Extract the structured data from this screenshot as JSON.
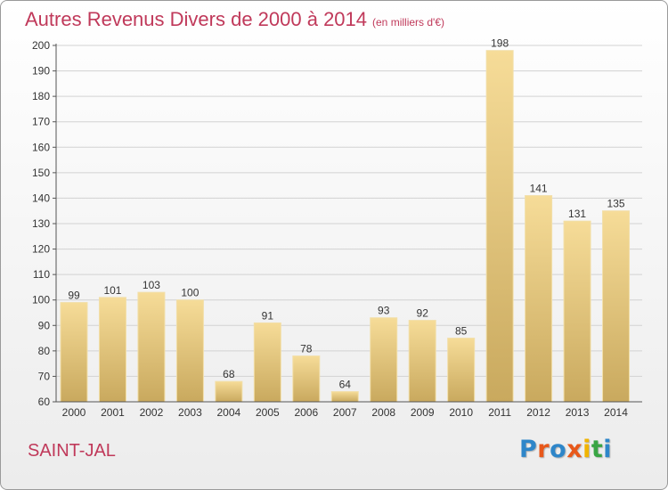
{
  "chart_data": {
    "type": "bar",
    "title": "Autres Revenus Divers de 2000 à 2014",
    "subtitle": "(en milliers d'€)",
    "categories": [
      "2000",
      "2001",
      "2002",
      "2003",
      "2004",
      "2005",
      "2006",
      "2007",
      "2008",
      "2009",
      "2010",
      "2011",
      "2012",
      "2013",
      "2014"
    ],
    "values": [
      99,
      101,
      103,
      100,
      68,
      91,
      78,
      64,
      93,
      92,
      85,
      198,
      141,
      131,
      135
    ],
    "ylim": [
      60,
      200
    ],
    "yticks": [
      60,
      70,
      80,
      90,
      100,
      110,
      120,
      130,
      140,
      150,
      160,
      170,
      180,
      190,
      200
    ],
    "grid": true,
    "bar_color": "#e8cc84"
  },
  "footer": {
    "place": "SAINT-JAL",
    "logo": [
      "P",
      "r",
      "o",
      "x",
      "i",
      "t",
      "i"
    ],
    "logo_colors": [
      "#2e86c9",
      "#e8581a",
      "#2e86c9",
      "#e8581a",
      "#f0b400",
      "#39a544",
      "#2e86c9"
    ]
  }
}
